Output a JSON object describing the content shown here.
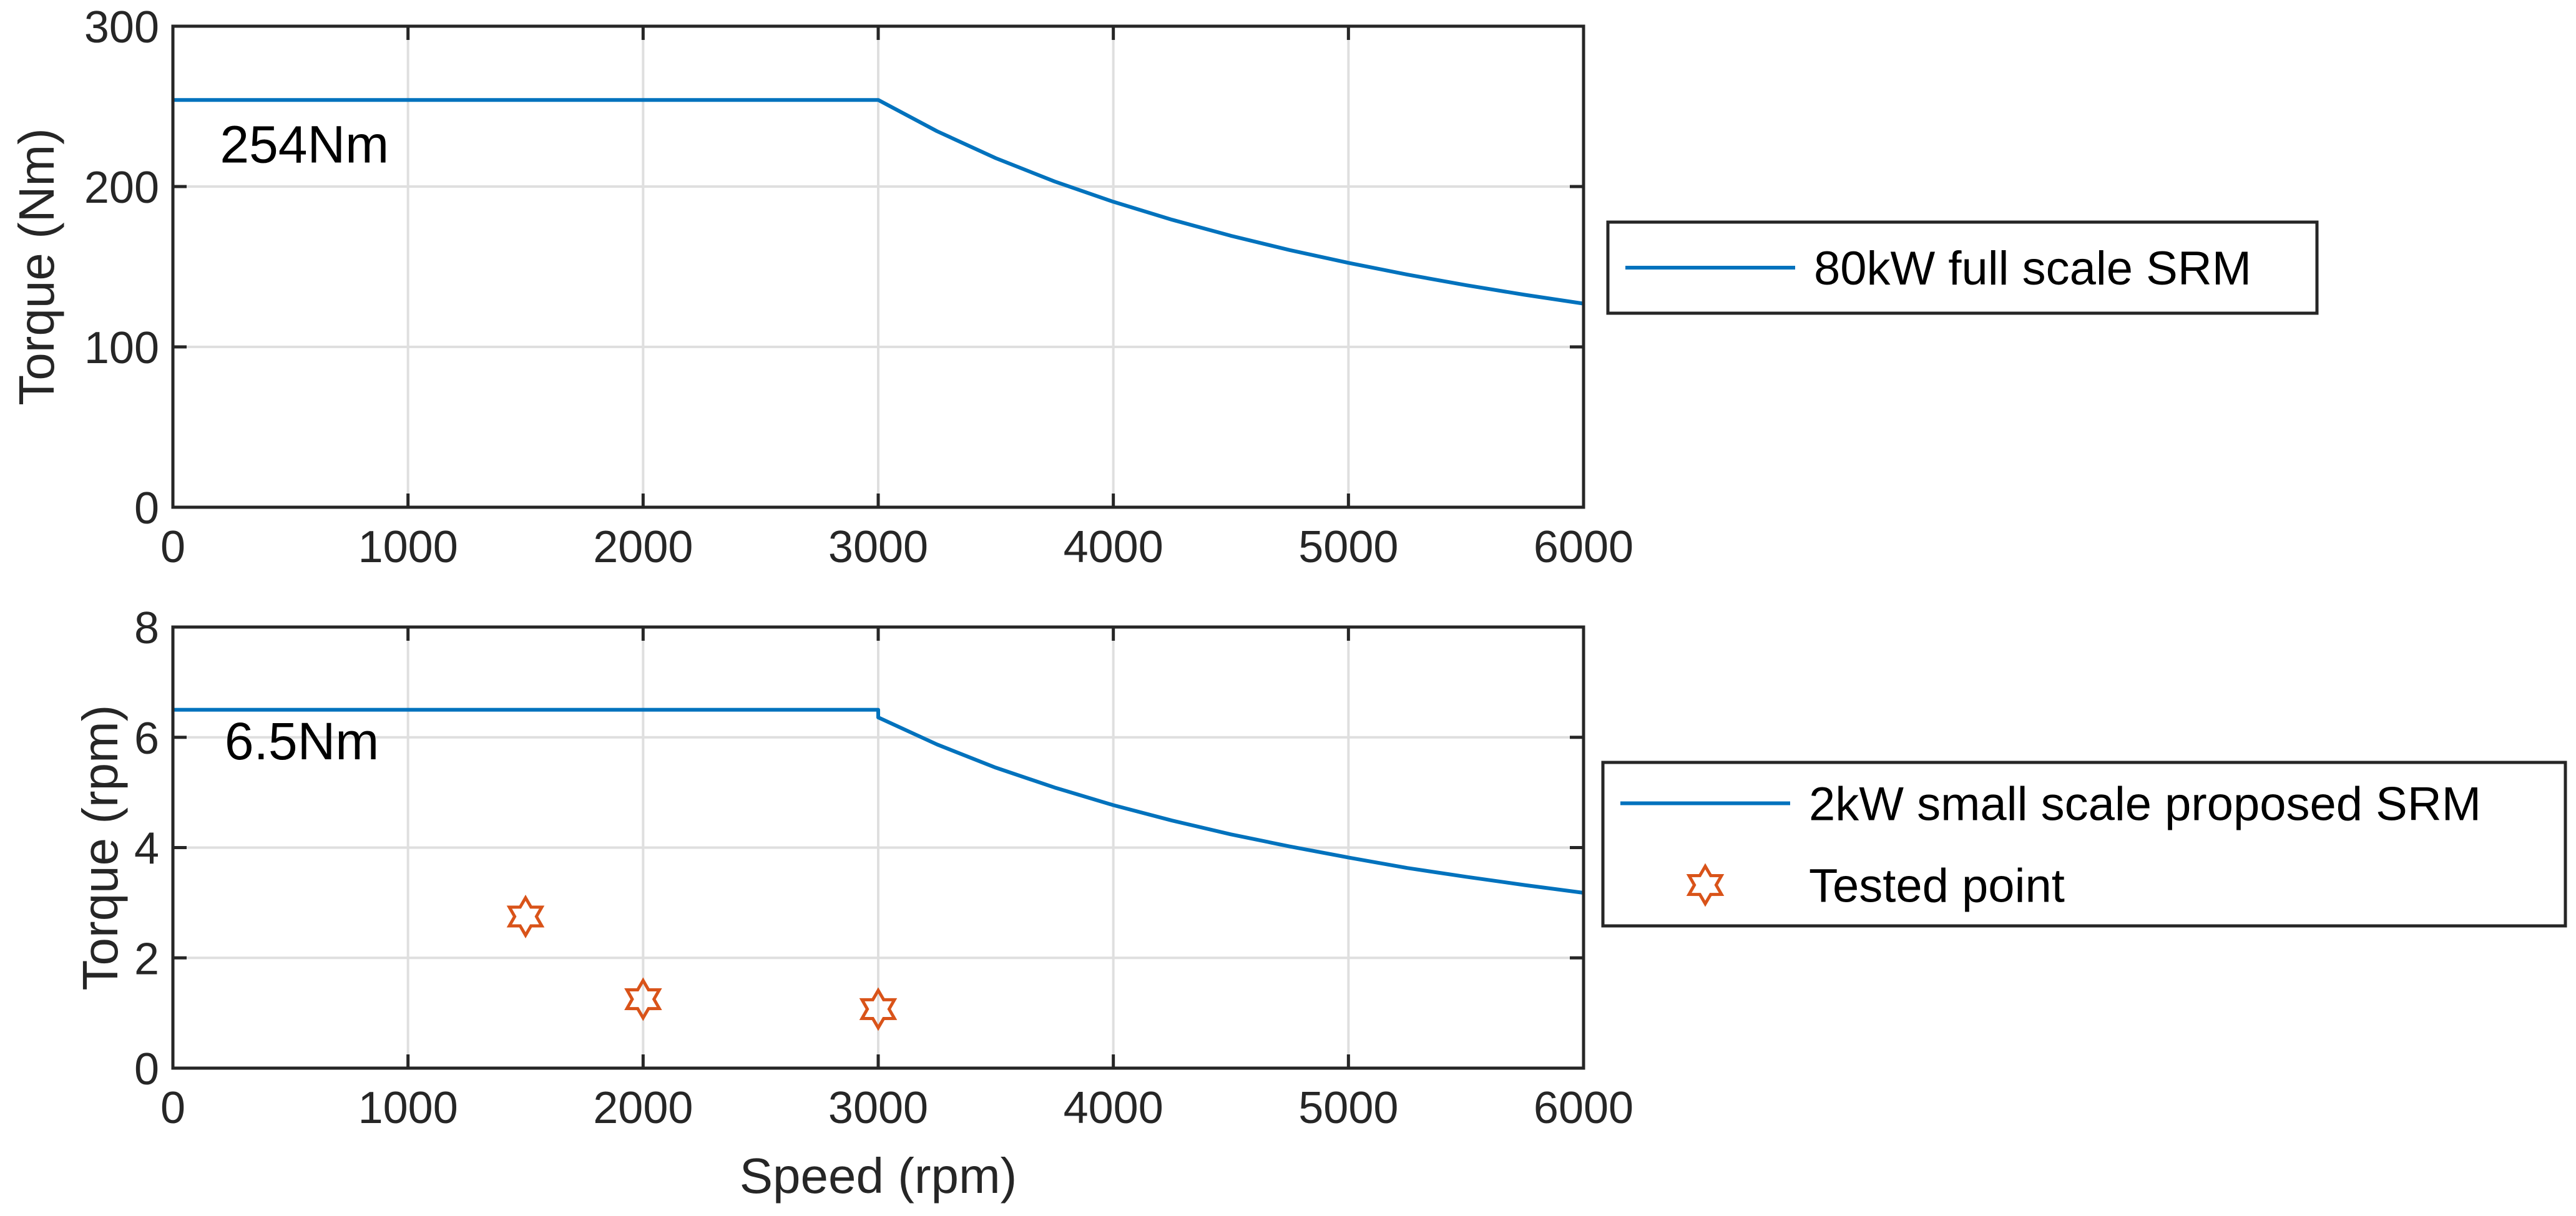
{
  "colors": {
    "series_line": "#0072BD",
    "tested_marker": "#D95319"
  },
  "chart_data": [
    {
      "type": "line",
      "id": "top",
      "title": "",
      "xlabel": "",
      "ylabel": "Torque (Nm)",
      "xlim": [
        0,
        6000
      ],
      "ylim": [
        0,
        300
      ],
      "xticks": [
        0,
        1000,
        2000,
        3000,
        4000,
        5000,
        6000
      ],
      "yticks": [
        0,
        100,
        200,
        300
      ],
      "xtick_labels": [
        "0",
        "1000",
        "2000",
        "3000",
        "4000",
        "5000",
        "6000"
      ],
      "ytick_labels": [
        "0",
        "100",
        "200",
        "300"
      ],
      "grid": true,
      "legend_position": "outside-right",
      "series": [
        {
          "name": "80kW full scale SRM",
          "style": "line",
          "x": [
            0,
            3000,
            3250,
            3500,
            3750,
            4000,
            4250,
            4500,
            4750,
            5000,
            5250,
            5500,
            5750,
            6000
          ],
          "y": [
            254,
            254,
            234.5,
            217.7,
            203.2,
            190.5,
            179.3,
            169.3,
            160.4,
            152.4,
            145.1,
            138.5,
            132.5,
            127
          ]
        }
      ],
      "annotations": [
        {
          "text": "254Nm",
          "x": 200,
          "y": 215
        }
      ]
    },
    {
      "type": "line",
      "id": "bottom",
      "title": "",
      "xlabel": "Speed (rpm)",
      "ylabel": "Torque (rpm)",
      "xlim": [
        0,
        6000
      ],
      "ylim": [
        0,
        8
      ],
      "xticks": [
        0,
        1000,
        2000,
        3000,
        4000,
        5000,
        6000
      ],
      "yticks": [
        0,
        2,
        4,
        6,
        8
      ],
      "xtick_labels": [
        "0",
        "1000",
        "2000",
        "3000",
        "4000",
        "5000",
        "6000"
      ],
      "ytick_labels": [
        "0",
        "2",
        "4",
        "6",
        "8"
      ],
      "grid": true,
      "legend_position": "outside-right",
      "series": [
        {
          "name": "2kW small scale proposed SRM",
          "style": "line",
          "x": [
            0,
            3000,
            3000,
            3250,
            3500,
            3750,
            4000,
            4250,
            4500,
            4750,
            5000,
            5250,
            5500,
            5750,
            6000
          ],
          "y": [
            6.5,
            6.5,
            6.36,
            5.87,
            5.45,
            5.09,
            4.77,
            4.49,
            4.24,
            4.02,
            3.82,
            3.63,
            3.47,
            3.32,
            3.18
          ]
        },
        {
          "name": "Tested point",
          "style": "marker-hexagram",
          "x": [
            1500,
            2000,
            3000
          ],
          "y": [
            2.75,
            1.25,
            1.07
          ]
        }
      ],
      "annotations": [
        {
          "text": "6.5Nm",
          "x": 220,
          "y": 5.6
        }
      ]
    }
  ]
}
